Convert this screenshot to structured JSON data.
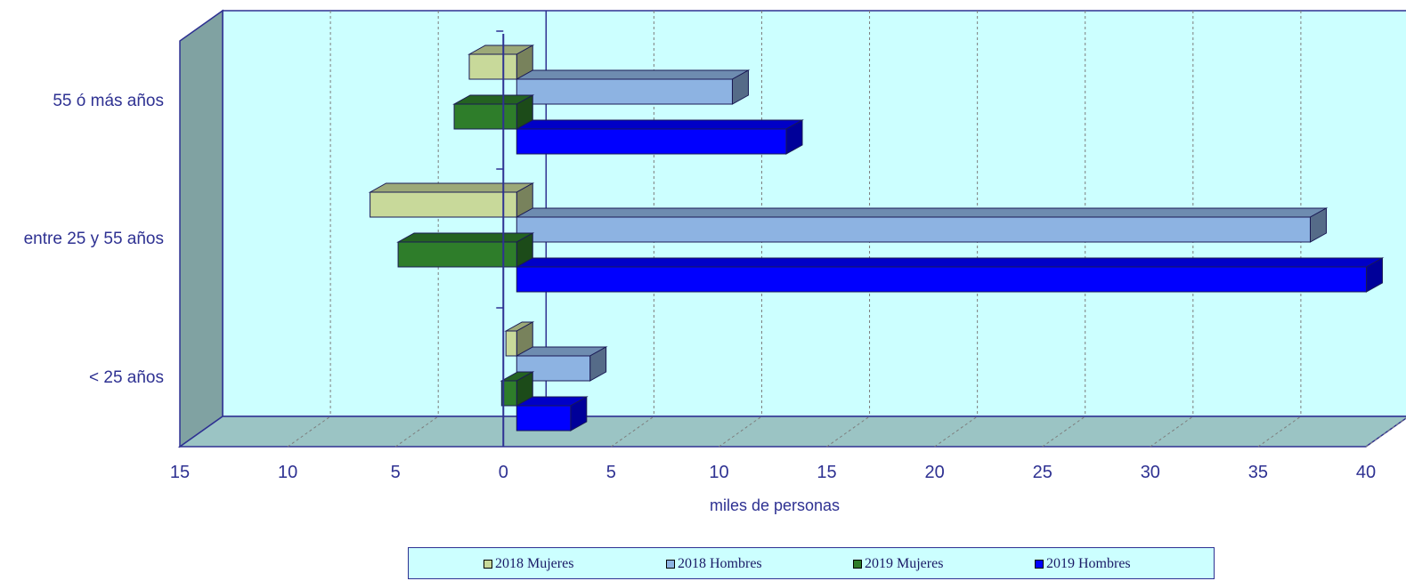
{
  "chart_data": {
    "type": "bar",
    "orientation": "horizontal",
    "style": "3d-diverging",
    "categories": [
      "< 25 años",
      "entre 25 y 55 años",
      "55 ó más años"
    ],
    "series": [
      {
        "name": "2018 Mujeres",
        "color": "#c8d99a",
        "side": "left",
        "values": [
          0.5,
          6.8,
          2.2
        ]
      },
      {
        "name": "2018 Hombres",
        "color": "#8db3e2",
        "side": "right",
        "values": [
          3.4,
          36.8,
          10.0
        ]
      },
      {
        "name": "2019 Mujeres",
        "color": "#2e7d2a",
        "side": "left",
        "values": [
          0.7,
          5.5,
          2.9
        ]
      },
      {
        "name": "2019 Hombres",
        "color": "#0000ff",
        "side": "right",
        "values": [
          2.5,
          39.4,
          12.5
        ]
      }
    ],
    "xlabel": "miles de personas",
    "ylabel": "",
    "x_tick_labels": [
      "15",
      "10",
      "5",
      "0",
      "5",
      "10",
      "15",
      "20",
      "25",
      "30",
      "35",
      "40"
    ],
    "xlim": [
      -15,
      40
    ],
    "grid": true,
    "legend_position": "bottom",
    "colors": {
      "plot_background": "#ccffff",
      "wall": "#80a2a2",
      "floor": "#9bc4c4",
      "axis": "#2e3192",
      "text": "#2e3192"
    }
  }
}
